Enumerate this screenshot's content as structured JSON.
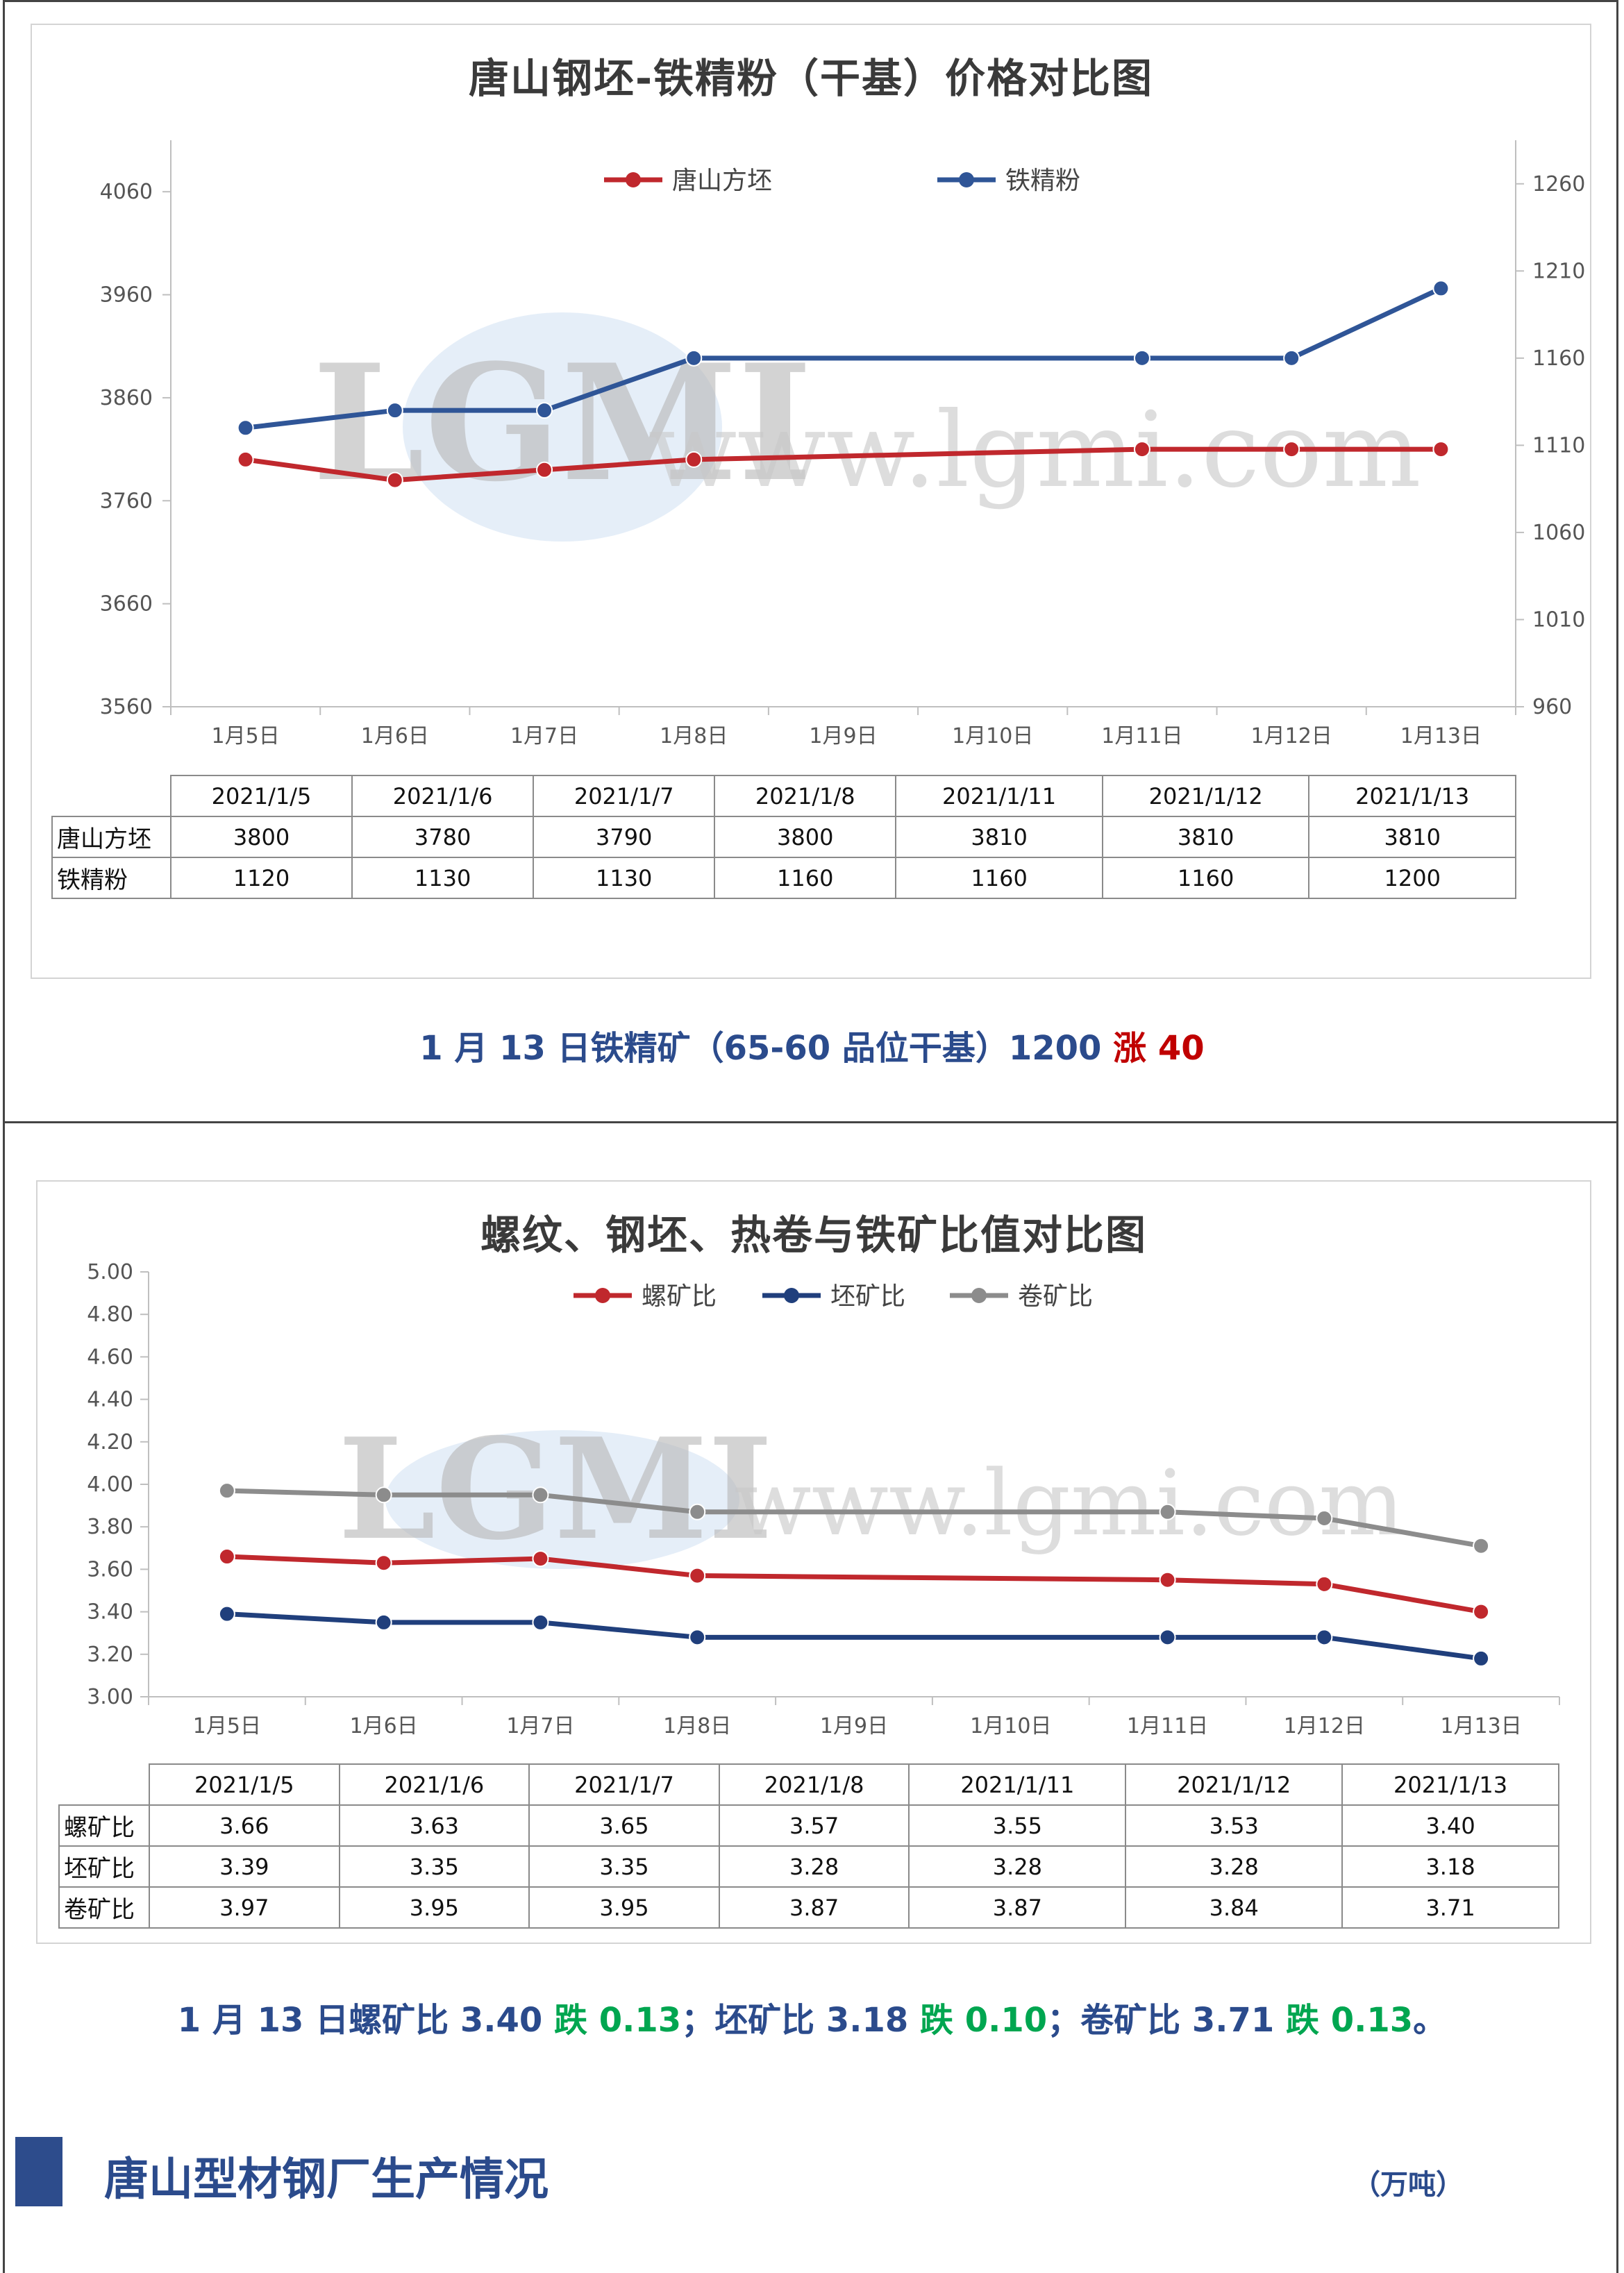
{
  "chart_data": [
    {
      "type": "line",
      "title": "唐山钢坯-铁精粉（干基）价格对比图",
      "categories": [
        "1月5日",
        "1月6日",
        "1月7日",
        "1月8日",
        "1月9日",
        "1月10日",
        "1月11日",
        "1月12日",
        "1月13日"
      ],
      "x_positions": [
        0,
        1,
        2,
        3,
        4,
        5,
        6,
        7,
        8
      ],
      "left_axis": {
        "ticks": [
          "4060",
          "3960",
          "3860",
          "3760",
          "3660",
          "3560"
        ],
        "ylim": [
          3560,
          4110
        ]
      },
      "right_axis": {
        "ticks": [
          "1260",
          "1210",
          "1160",
          "1110",
          "1060",
          "1010",
          "960"
        ],
        "ylim": [
          960,
          1285
        ]
      },
      "series": [
        {
          "name": "唐山方坯",
          "axis": "left",
          "color": "#c0282d",
          "x": [
            0,
            1,
            2,
            3,
            6,
            7,
            8
          ],
          "values": [
            3800,
            3780,
            3790,
            3800,
            3810,
            3810,
            3810
          ]
        },
        {
          "name": "铁精粉",
          "axis": "right",
          "color": "#2f5597",
          "x": [
            0,
            1,
            2,
            3,
            6,
            7,
            8
          ],
          "values": [
            1120,
            1130,
            1130,
            1160,
            1160,
            1160,
            1200
          ]
        }
      ],
      "table": {
        "headers": [
          "2021/1/5",
          "2021/1/6",
          "2021/1/7",
          "2021/1/8",
          "2021/1/11",
          "2021/1/12",
          "2021/1/13"
        ],
        "rows": [
          {
            "label": "唐山方坯",
            "values": [
              "3800",
              "3780",
              "3790",
              "3800",
              "3810",
              "3810",
              "3810"
            ]
          },
          {
            "label": "铁精粉",
            "values": [
              "1120",
              "1130",
              "1130",
              "1160",
              "1160",
              "1160",
              "1200"
            ]
          }
        ]
      }
    },
    {
      "type": "line",
      "title": "螺纹、钢坯、热卷与铁矿比值对比图",
      "categories": [
        "1月5日",
        "1月6日",
        "1月7日",
        "1月8日",
        "1月9日",
        "1月10日",
        "1月11日",
        "1月12日",
        "1月13日"
      ],
      "y_axis": {
        "ticks": [
          "5.00",
          "4.80",
          "4.60",
          "4.40",
          "4.20",
          "4.00",
          "3.80",
          "3.60",
          "3.40",
          "3.20",
          "3.00"
        ],
        "ylim": [
          3.0,
          5.0
        ]
      },
      "series": [
        {
          "name": "螺矿比",
          "color": "#c0282d",
          "x": [
            0,
            1,
            2,
            3,
            6,
            7,
            8
          ],
          "values": [
            3.66,
            3.63,
            3.65,
            3.57,
            3.55,
            3.53,
            3.4
          ]
        },
        {
          "name": "坯矿比",
          "color": "#203f7c",
          "x": [
            0,
            1,
            2,
            3,
            6,
            7,
            8
          ],
          "values": [
            3.39,
            3.35,
            3.35,
            3.28,
            3.28,
            3.28,
            3.18
          ]
        },
        {
          "name": "卷矿比",
          "color": "#8c8c8c",
          "x": [
            0,
            1,
            2,
            3,
            6,
            7,
            8
          ],
          "values": [
            3.97,
            3.95,
            3.95,
            3.87,
            3.87,
            3.84,
            3.71
          ]
        }
      ],
      "table": {
        "headers": [
          "2021/1/5",
          "2021/1/6",
          "2021/1/7",
          "2021/1/8",
          "2021/1/11",
          "2021/1/12",
          "2021/1/13"
        ],
        "rows": [
          {
            "label": "螺矿比",
            "values": [
              "3.66",
              "3.63",
              "3.65",
              "3.57",
              "3.55",
              "3.53",
              "3.40"
            ]
          },
          {
            "label": "坯矿比",
            "values": [
              "3.39",
              "3.35",
              "3.35",
              "3.28",
              "3.28",
              "3.28",
              "3.18"
            ]
          },
          {
            "label": "卷矿比",
            "values": [
              "3.97",
              "3.95",
              "3.95",
              "3.87",
              "3.87",
              "3.84",
              "3.71"
            ]
          }
        ]
      }
    }
  ],
  "watermark": {
    "logo_text": "LGMI",
    "url": "www.lgmi.com"
  },
  "summary1": {
    "prefix": "1 月 13 日铁精矿（65-60 品位干基）1200 ",
    "change": "涨 40"
  },
  "summary2": {
    "a": "1 月 13 日螺矿比 3.40 ",
    "a_change": "跌 0.13",
    "b": "；坯矿比 3.18 ",
    "b_change": "跌 0.10",
    "c": "；卷矿比 3.71 ",
    "c_change": "跌 0.13",
    "d": "。"
  },
  "section": {
    "title": "唐山型材钢厂生产情况",
    "unit": "（万吨）"
  }
}
